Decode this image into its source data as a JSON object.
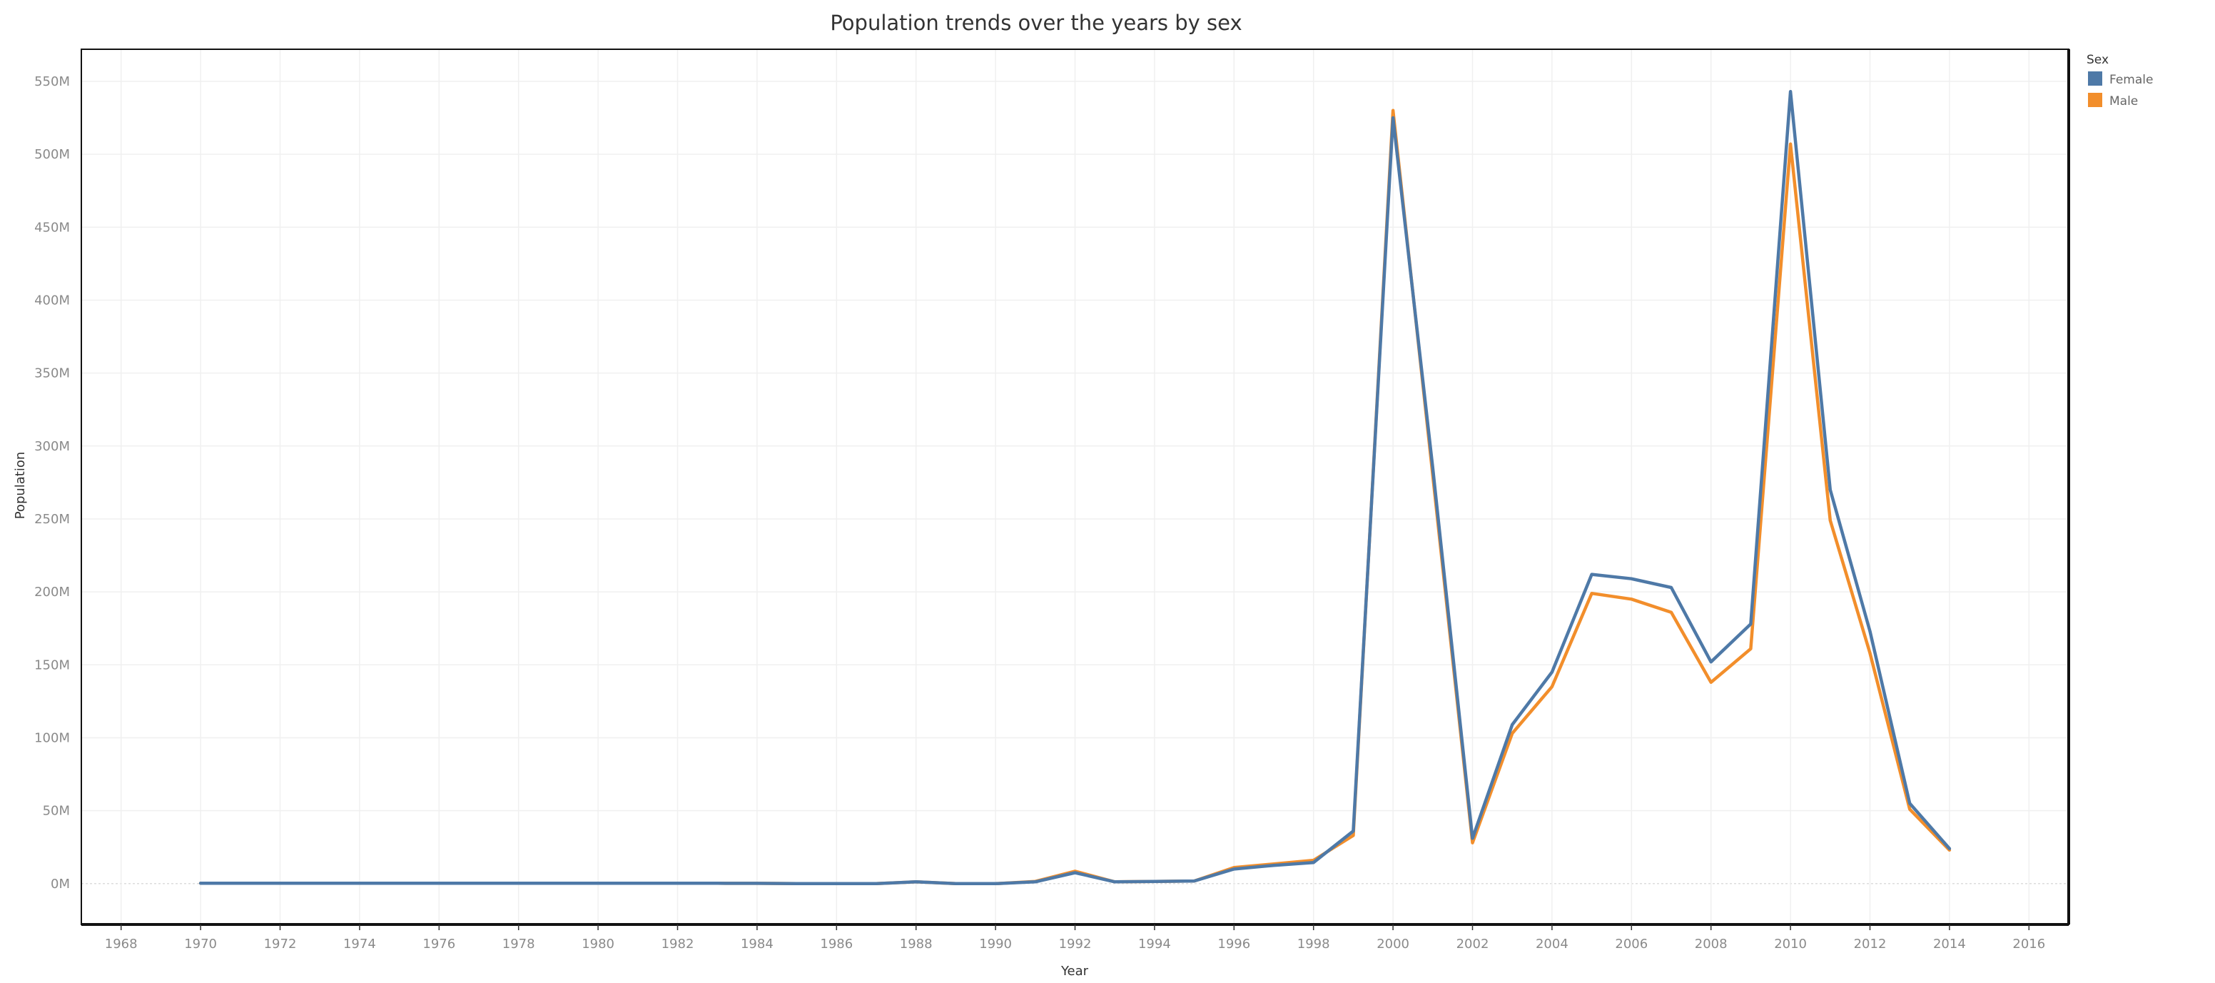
{
  "chart_data": {
    "type": "line",
    "title": "Population trends over the years by sex",
    "xlabel": "Year",
    "ylabel": "Population",
    "xlim": [
      1967,
      2017
    ],
    "x_ticks": [
      1968,
      1970,
      1972,
      1974,
      1976,
      1978,
      1980,
      1982,
      1984,
      1986,
      1988,
      1990,
      1992,
      1994,
      1996,
      1998,
      2000,
      2002,
      2004,
      2006,
      2008,
      2010,
      2012,
      2014,
      2016
    ],
    "ylim": [
      -28000000,
      572000000
    ],
    "y_ticks": [
      0,
      50000000,
      100000000,
      150000000,
      200000000,
      250000000,
      300000000,
      350000000,
      400000000,
      450000000,
      500000000,
      550000000
    ],
    "y_tick_labels": [
      "0M",
      "50M",
      "100M",
      "150M",
      "200M",
      "250M",
      "300M",
      "350M",
      "400M",
      "450M",
      "500M",
      "550M"
    ],
    "grid": true,
    "legend": {
      "title": "Sex",
      "position": "top-right",
      "entries": [
        "Female",
        "Male"
      ]
    },
    "series": [
      {
        "name": "Male",
        "color": "#f28e2b",
        "x": [
          1970,
          1971,
          1972,
          1973,
          1974,
          1975,
          1976,
          1977,
          1978,
          1979,
          1980,
          1981,
          1982,
          1983,
          1984,
          1985,
          1986,
          1987,
          1988,
          1989,
          1990,
          1991,
          1992,
          1993,
          1994,
          1995,
          1996,
          1997,
          1998,
          1999,
          2000,
          2001,
          2002,
          2003,
          2004,
          2005,
          2006,
          2007,
          2008,
          2009,
          2010,
          2011,
          2012,
          2013,
          2014
        ],
        "values": [
          300000,
          300000,
          300000,
          300000,
          300000,
          300000,
          300000,
          250000,
          250000,
          250000,
          250000,
          250000,
          250000,
          250000,
          200000,
          0,
          0,
          0,
          1200000,
          0,
          0,
          1500000,
          8500000,
          1200000,
          1500000,
          1800000,
          11000000,
          13500000,
          16000000,
          33000000,
          530000000,
          280000000,
          28000000,
          103000000,
          135000000,
          199000000,
          195000000,
          186000000,
          138000000,
          161000000,
          507000000,
          249000000,
          158000000,
          51000000,
          23000000
        ]
      },
      {
        "name": "Female",
        "color": "#4e79a7",
        "x": [
          1970,
          1971,
          1972,
          1973,
          1974,
          1975,
          1976,
          1977,
          1978,
          1979,
          1980,
          1981,
          1982,
          1983,
          1984,
          1985,
          1986,
          1987,
          1988,
          1989,
          1990,
          1991,
          1992,
          1993,
          1994,
          1995,
          1996,
          1997,
          1998,
          1999,
          2000,
          2001,
          2002,
          2003,
          2004,
          2005,
          2006,
          2007,
          2008,
          2009,
          2010,
          2011,
          2012,
          2013,
          2014
        ],
        "values": [
          300000,
          300000,
          300000,
          300000,
          300000,
          300000,
          300000,
          250000,
          250000,
          250000,
          250000,
          250000,
          250000,
          250000,
          200000,
          0,
          0,
          0,
          1200000,
          0,
          0,
          1200000,
          7500000,
          1200000,
          1500000,
          1800000,
          10000000,
          12500000,
          14500000,
          36000000,
          525000000,
          285000000,
          31000000,
          109000000,
          145000000,
          212000000,
          209000000,
          203000000,
          152000000,
          178000000,
          543000000,
          270000000,
          173000000,
          55000000,
          24000000
        ]
      }
    ]
  }
}
